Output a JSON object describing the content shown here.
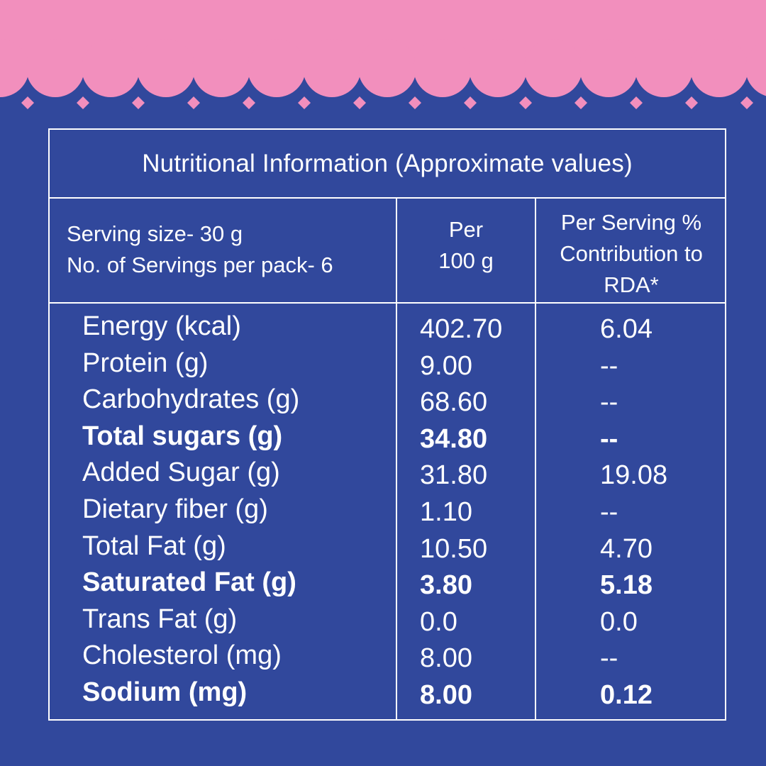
{
  "colors": {
    "background": "#31489c",
    "banner": "#f28fbd",
    "text": "#ffffff"
  },
  "title": "Nutritional Information (Approximate values)",
  "header": {
    "serving_line1": "Serving size- 30 g",
    "serving_line2": "No. of Servings per pack- 6",
    "col_per100_line1": "Per",
    "col_per100_line2": "100 g",
    "col_rda_line1": "Per Serving %",
    "col_rda_line2": "Contribution to",
    "col_rda_line3": "RDA*"
  },
  "rows": [
    {
      "name": "Energy (kcal)",
      "per100": "402.70",
      "rda": "6.04",
      "bold": false
    },
    {
      "name": "Protein (g)",
      "per100": "9.00",
      "rda": "--",
      "bold": false
    },
    {
      "name": "Carbohydrates (g)",
      "per100": "68.60",
      "rda": "--",
      "bold": false
    },
    {
      "name": "Total sugars (g)",
      "per100": "34.80",
      "rda": "--",
      "bold": true
    },
    {
      "name": "Added Sugar (g)",
      "per100": "31.80",
      "rda": "19.08",
      "bold": false
    },
    {
      "name": "Dietary fiber (g)",
      "per100": "1.10",
      "rda": "--",
      "bold": false
    },
    {
      "name": "Total Fat (g)",
      "per100": "10.50",
      "rda": "4.70",
      "bold": false
    },
    {
      "name": "Saturated Fat (g)",
      "per100": "3.80",
      "rda": "5.18",
      "bold": true
    },
    {
      "name": "Trans Fat (g)",
      "per100": "0.0",
      "rda": "0.0",
      "bold": false
    },
    {
      "name": "Cholesterol (mg)",
      "per100": "8.00",
      "rda": "--",
      "bold": false
    },
    {
      "name": "Sodium (mg)",
      "per100": "8.00",
      "rda": "0.12",
      "bold": true
    }
  ]
}
